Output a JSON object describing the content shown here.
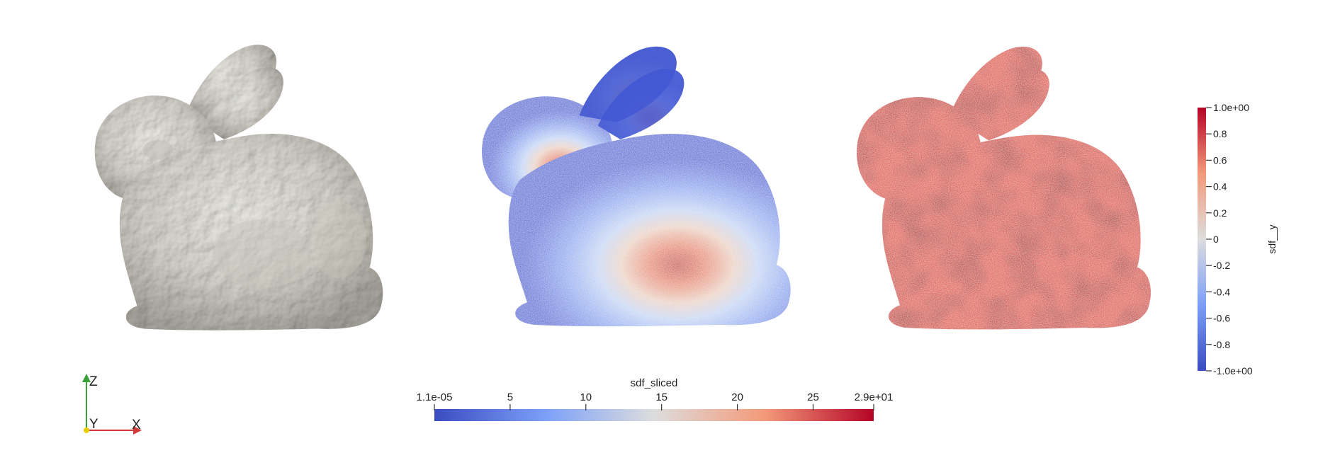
{
  "axes_triad": {
    "z_label": "Z",
    "y_label": "Y",
    "x_label": "X"
  },
  "colorbar_sliced": {
    "title": "sdf_sliced",
    "ticks": [
      "1.1e-05",
      "5",
      "10",
      "15",
      "20",
      "25",
      "2.9e+01"
    ],
    "colormap": "cool-to-warm",
    "range": [
      1.1e-05,
      29
    ]
  },
  "colorbar_y": {
    "title": "sdf__y",
    "ticks": [
      "1.0e+00",
      "0.8",
      "0.6",
      "0.4",
      "0.2",
      "0",
      "-0.2",
      "-0.4",
      "-0.6",
      "-0.8",
      "-1.0e+00"
    ],
    "colormap": "cool-to-warm",
    "range": [
      -1.0,
      1.0
    ]
  },
  "colors": {
    "mesh": "#d8d6ce",
    "cool": "#3b4cc0",
    "neutral": "#dddddd",
    "warm": "#b40426"
  }
}
